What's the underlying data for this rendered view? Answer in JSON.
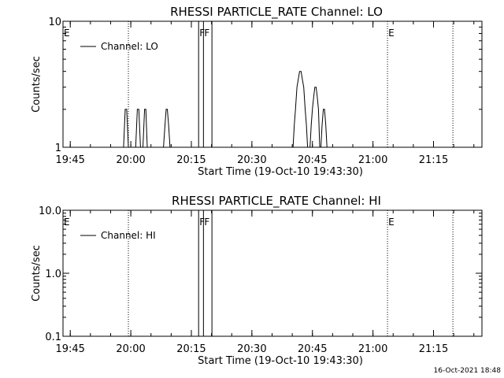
{
  "footer": {
    "timestamp": "16-Oct-2021 18:48"
  },
  "chart_data": [
    {
      "type": "line",
      "title": "RHESSI PARTICLE_RATE Channel: LO",
      "xlabel": "Start Time (19-Oct-10 19:43:30)",
      "ylabel": "Counts/sec",
      "yscale": "log",
      "ylim": [
        1,
        10
      ],
      "yticks": [
        {
          "v": 1,
          "label": "1"
        },
        {
          "v": 10,
          "label": "10"
        }
      ],
      "xlim_minutes": [
        19.72,
        21.45
      ],
      "xticks": [
        {
          "t": 19.75,
          "label": "19:45"
        },
        {
          "t": 20.0,
          "label": "20:00"
        },
        {
          "t": 20.25,
          "label": "20:15"
        },
        {
          "t": 20.5,
          "label": "20:30"
        },
        {
          "t": 20.75,
          "label": "20:45"
        },
        {
          "t": 21.0,
          "label": "21:00"
        },
        {
          "t": 21.25,
          "label": "21:15"
        }
      ],
      "legend": {
        "position": "top-left",
        "entries": [
          "Channel: LO"
        ]
      },
      "series": [
        {
          "name": "Channel: LO",
          "points": [
            [
              19.75,
              1
            ],
            [
              19.97,
              1
            ],
            [
              19.977,
              2
            ],
            [
              19.983,
              2
            ],
            [
              19.99,
              1
            ],
            [
              20.02,
              1
            ],
            [
              20.027,
              2
            ],
            [
              20.033,
              2
            ],
            [
              20.04,
              1
            ],
            [
              20.05,
              1
            ],
            [
              20.057,
              2
            ],
            [
              20.062,
              2
            ],
            [
              20.068,
              1
            ],
            [
              20.135,
              1
            ],
            [
              20.141,
              1.5
            ],
            [
              20.146,
              2
            ],
            [
              20.151,
              2
            ],
            [
              20.156,
              1.5
            ],
            [
              20.162,
              1
            ],
            [
              20.67,
              1
            ],
            [
              20.675,
              1.5
            ],
            [
              20.68,
              2
            ],
            [
              20.686,
              3
            ],
            [
              20.692,
              3.5
            ],
            [
              20.697,
              4
            ],
            [
              20.703,
              4
            ],
            [
              20.708,
              3.5
            ],
            [
              20.714,
              3
            ],
            [
              20.72,
              2
            ],
            [
              20.725,
              1.5
            ],
            [
              20.73,
              1
            ],
            [
              20.74,
              1
            ],
            [
              20.745,
              1.5
            ],
            [
              20.75,
              2
            ],
            [
              20.755,
              2.5
            ],
            [
              20.76,
              3
            ],
            [
              20.765,
              3
            ],
            [
              20.77,
              2.5
            ],
            [
              20.775,
              2
            ],
            [
              20.78,
              1
            ],
            [
              20.785,
              1
            ],
            [
              20.79,
              1.5
            ],
            [
              20.795,
              2
            ],
            [
              20.8,
              2
            ],
            [
              20.805,
              1.5
            ],
            [
              20.81,
              1
            ],
            [
              21.42,
              1
            ]
          ]
        }
      ],
      "annotations": [
        {
          "t": 19.72,
          "label": "E",
          "style": "dotted"
        },
        {
          "t": 19.99,
          "label": "",
          "style": "dotted"
        },
        {
          "t": 20.28,
          "label": "F",
          "style": "solid"
        },
        {
          "t": 20.3,
          "label": "F",
          "style": "solid"
        },
        {
          "t": 20.335,
          "label": "",
          "style": "solid"
        },
        {
          "t": 21.06,
          "label": "E",
          "style": "dotted"
        },
        {
          "t": 21.33,
          "label": "",
          "style": "dotted"
        }
      ]
    },
    {
      "type": "line",
      "title": "RHESSI PARTICLE_RATE Channel: HI",
      "xlabel": "Start Time (19-Oct-10 19:43:30)",
      "ylabel": "Counts/sec",
      "yscale": "log",
      "ylim": [
        0.1,
        10
      ],
      "yticks": [
        {
          "v": 0.1,
          "label": "0.1"
        },
        {
          "v": 1,
          "label": "1.0"
        },
        {
          "v": 10,
          "label": "10.0"
        }
      ],
      "xlim_minutes": [
        19.72,
        21.45
      ],
      "xticks": [
        {
          "t": 19.75,
          "label": "19:45"
        },
        {
          "t": 20.0,
          "label": "20:00"
        },
        {
          "t": 20.25,
          "label": "20:15"
        },
        {
          "t": 20.5,
          "label": "20:30"
        },
        {
          "t": 20.75,
          "label": "20:45"
        },
        {
          "t": 21.0,
          "label": "21:00"
        },
        {
          "t": 21.25,
          "label": "21:15"
        }
      ],
      "legend": {
        "position": "top-left",
        "entries": [
          "Channel: HI"
        ]
      },
      "series": [
        {
          "name": "Channel: HI",
          "points": []
        }
      ],
      "annotations": [
        {
          "t": 19.72,
          "label": "E",
          "style": "dotted"
        },
        {
          "t": 19.99,
          "label": "",
          "style": "dotted"
        },
        {
          "t": 20.28,
          "label": "F",
          "style": "solid"
        },
        {
          "t": 20.3,
          "label": "F",
          "style": "solid"
        },
        {
          "t": 20.335,
          "label": "",
          "style": "solid"
        },
        {
          "t": 21.06,
          "label": "E",
          "style": "dotted"
        },
        {
          "t": 21.33,
          "label": "",
          "style": "dotted"
        }
      ]
    }
  ]
}
